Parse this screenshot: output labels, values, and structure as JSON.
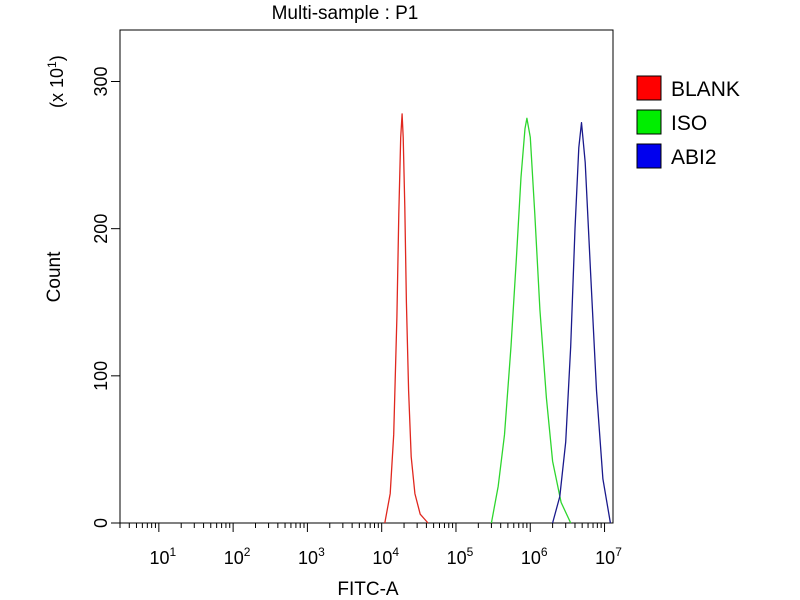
{
  "chart_data": {
    "type": "line",
    "title": "Multi-sample : P1",
    "xlabel": "FITC-A",
    "ylabel": "Count",
    "y_multiplier_label": "(x 10",
    "y_multiplier_exp": "1",
    "y_multiplier_close": ")",
    "xscale": "log",
    "xlim": [
      3,
      13000000
    ],
    "ylim": [
      0,
      335
    ],
    "x_ticks": [
      {
        "base": "10",
        "exp": "1",
        "value": 10
      },
      {
        "base": "10",
        "exp": "2",
        "value": 100
      },
      {
        "base": "10",
        "exp": "3",
        "value": 1000
      },
      {
        "base": "10",
        "exp": "4",
        "value": 10000
      },
      {
        "base": "10",
        "exp": "5",
        "value": 100000
      },
      {
        "base": "10",
        "exp": "6",
        "value": 1000000
      },
      {
        "base": "10",
        "exp": "7",
        "value": 10000000
      }
    ],
    "y_ticks": [
      {
        "label": "0",
        "value": 0
      },
      {
        "label": "100",
        "value": 100
      },
      {
        "label": "200",
        "value": 200
      },
      {
        "label": "300",
        "value": 300
      }
    ],
    "grid": false,
    "legend_position": "right",
    "series": [
      {
        "name": "BLANK",
        "color": "#e0271e",
        "swatch": "#ff0000",
        "x": [
          11000,
          13000,
          14500,
          16000,
          17000,
          18000,
          18800,
          19500,
          20500,
          21500,
          23000,
          25000,
          28000,
          33000,
          42000
        ],
        "y": [
          0,
          20,
          60,
          140,
          210,
          262,
          278,
          262,
          215,
          150,
          90,
          45,
          20,
          6,
          0
        ]
      },
      {
        "name": "ISO",
        "color": "#2ed62e",
        "swatch": "#00ee00",
        "x": [
          300000,
          370000,
          450000,
          550000,
          650000,
          750000,
          850000,
          900000,
          1000000,
          1150000,
          1350000,
          1650000,
          2000000,
          2600000,
          3500000
        ],
        "y": [
          0,
          25,
          60,
          120,
          180,
          235,
          268,
          275,
          262,
          210,
          145,
          85,
          42,
          14,
          0
        ]
      },
      {
        "name": "ABI2",
        "color": "#1a1a8c",
        "swatch": "#0000ee",
        "x": [
          2000000,
          2500000,
          3000000,
          3500000,
          4000000,
          4500000,
          4900000,
          5500000,
          6500000,
          7800000,
          9500000,
          12000000
        ],
        "y": [
          0,
          18,
          55,
          120,
          200,
          255,
          272,
          245,
          170,
          90,
          30,
          0
        ]
      }
    ]
  }
}
